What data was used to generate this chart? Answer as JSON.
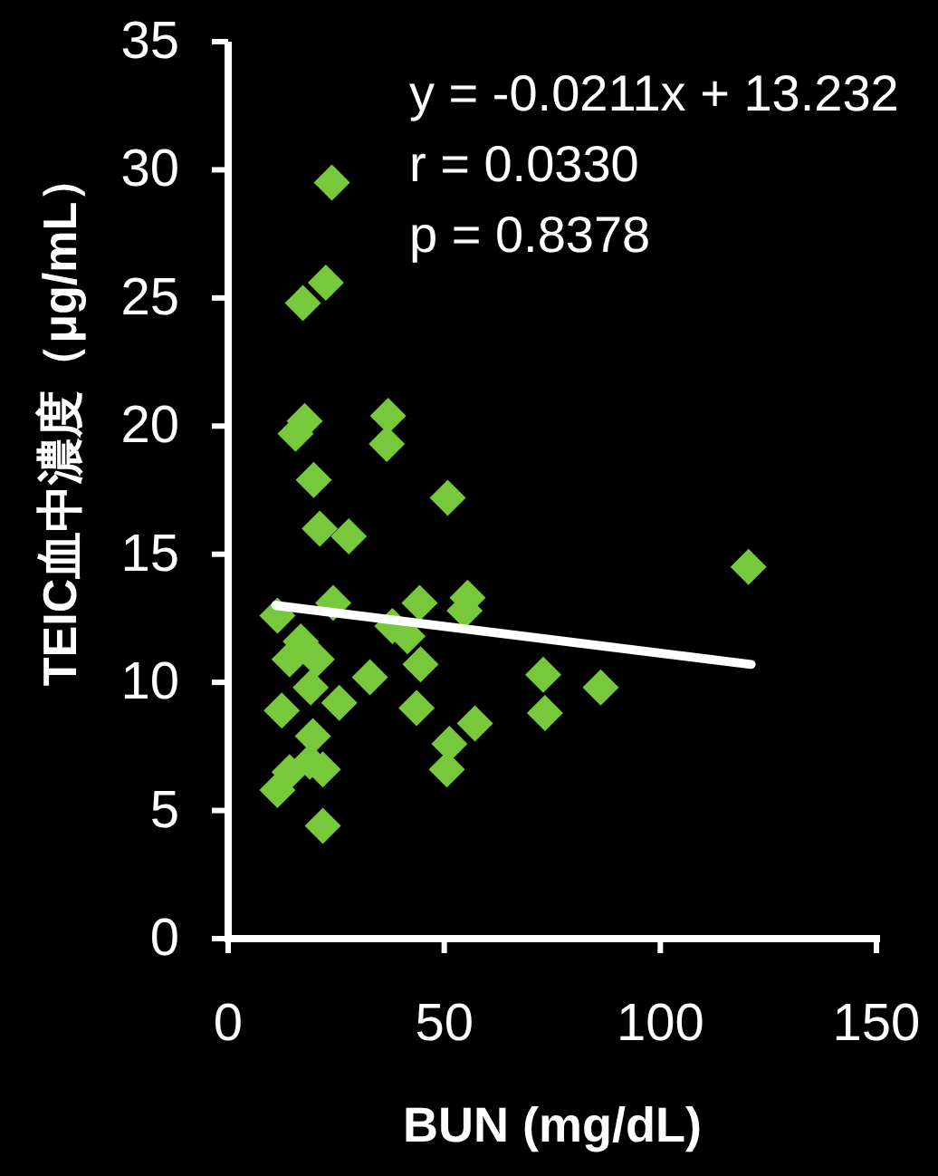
{
  "chart_data": {
    "type": "scatter",
    "xlabel": "BUN (mg/dL)",
    "ylabel": "TEIC血中濃度（μg/mL）",
    "xlim": [
      0,
      150
    ],
    "xticks": [
      0,
      50,
      100,
      150
    ],
    "ylim": [
      0,
      35
    ],
    "yticks": [
      0,
      5,
      10,
      15,
      20,
      25,
      30,
      35
    ],
    "annotations": [
      "y = -0.0211x + 13.232",
      "r = 0.0330",
      "p = 0.8378"
    ],
    "series": [
      {
        "type": "scatter",
        "color": "#77c83a",
        "marker": "diamond",
        "x": [
          24.0,
          22.6,
          17.3,
          17.7,
          15.6,
          37.0,
          36.7,
          19.8,
          50.8,
          21.2,
          27.9,
          11.4,
          24.3,
          16.8,
          14.2,
          20.5,
          19.1,
          25.7,
          12.4,
          32.8,
          44.3,
          55.4,
          54.7,
          38.0,
          41.5,
          44.5,
          43.6,
          57.1,
          51.2,
          50.6,
          72.9,
          73.3,
          86.2,
          120.4,
          19.6,
          14.2,
          21.9,
          11.4,
          21.9,
          18.9
        ],
        "values": [
          29.5,
          25.6,
          24.8,
          20.2,
          19.7,
          20.4,
          19.3,
          17.9,
          17.2,
          16.0,
          15.7,
          12.6,
          13.1,
          11.6,
          10.9,
          10.9,
          9.8,
          9.2,
          8.9,
          10.2,
          13.1,
          13.3,
          12.8,
          12.2,
          11.8,
          10.7,
          9.0,
          8.4,
          7.6,
          6.6,
          10.3,
          8.8,
          9.8,
          14.5,
          7.9,
          6.5,
          6.6,
          5.8,
          4.4,
          6.9
        ]
      },
      {
        "type": "line",
        "color": "#ffffff",
        "marker": "none",
        "line_style": "solid",
        "x": [
          11,
          121
        ],
        "values": [
          13.0,
          10.7
        ]
      }
    ]
  }
}
